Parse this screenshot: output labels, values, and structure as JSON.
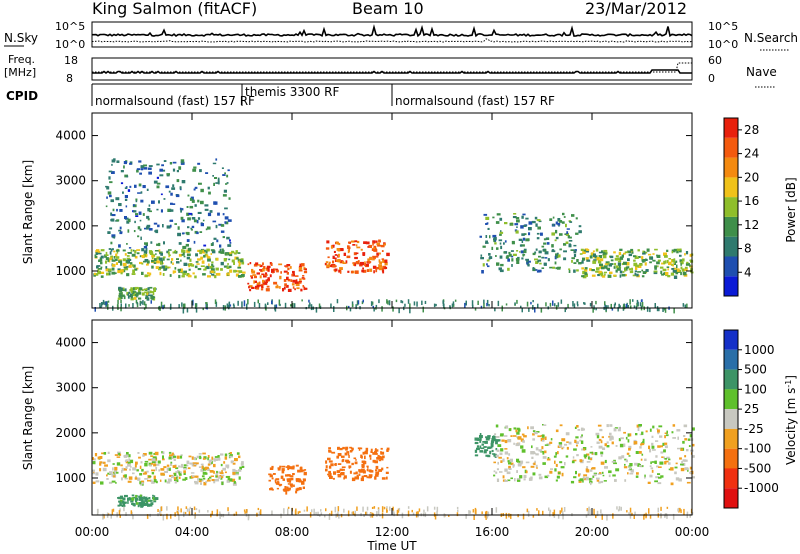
{
  "header": {
    "station": "King Salmon (fitACF)",
    "beam": "Beam 10",
    "date": "23/Mar/2012"
  },
  "top_panels": {
    "nsky_label": "N.Sky",
    "nsky_ticks": [
      "10^5",
      "10^0"
    ],
    "nsearch_label": "N.Search",
    "nsearch_ticks": [
      "10^5",
      "10^0"
    ],
    "freq_label_1": "Freq.",
    "freq_label_2": "[MHz]",
    "freq_ticks": [
      "18",
      "8"
    ],
    "nave_label": "Nave",
    "nave_ticks": [
      "60",
      "0"
    ],
    "cpid_label": "CPID",
    "cpid_segments": [
      {
        "text": "normalsound (fast) 157 RF",
        "start_ut": 0,
        "end_ut": 6.0
      },
      {
        "text": "themis 3300 RF",
        "start_ut": 6.0,
        "end_ut": 12.0
      },
      {
        "text": "normalsound (fast) 157 RF",
        "start_ut": 12.0,
        "end_ut": 24.0
      }
    ]
  },
  "chart_data": [
    {
      "type": "heatmap",
      "title": "",
      "xlabel": "Time UT",
      "ylabel": "Slant Range [km]",
      "xlim": [
        0,
        24
      ],
      "ylim": [
        180,
        4500
      ],
      "x_ticks": [
        "00:00",
        "04:00",
        "08:00",
        "12:00",
        "16:00",
        "20:00",
        "00:00"
      ],
      "y_ticks": [
        1000,
        2000,
        3000,
        4000
      ],
      "colorbar": {
        "label": "Power [dB]",
        "ticks": [
          4,
          8,
          12,
          16,
          20,
          24,
          28
        ],
        "range": [
          0,
          30
        ],
        "colors": [
          "#0b1bd6",
          "#1f4fb0",
          "#2f7a6e",
          "#3f8f4a",
          "#8fbe2b",
          "#f0c21a",
          "#f48a10",
          "#f45a0e",
          "#e8200c"
        ]
      },
      "echo_regions": [
        {
          "name": "E-region band",
          "t_start": 0.0,
          "t_end": 6.0,
          "range_km": [
            900,
            1500
          ],
          "power_db": 14
        },
        {
          "name": "ionospheric scatter",
          "t_start": 0.5,
          "t_end": 5.5,
          "range_km": [
            1500,
            3500
          ],
          "power_db": 8
        },
        {
          "name": "near-range patch",
          "t_start": 1.0,
          "t_end": 2.5,
          "range_km": [
            400,
            650
          ],
          "power_db": 12
        },
        {
          "name": "strong echo",
          "t_start": 6.2,
          "t_end": 8.5,
          "range_km": [
            600,
            1200
          ],
          "power_db": 26
        },
        {
          "name": "strong echo",
          "t_start": 9.3,
          "t_end": 11.8,
          "range_km": [
            1000,
            1700
          ],
          "power_db": 25
        },
        {
          "name": "evening band",
          "t_start": 15.5,
          "t_end": 19.5,
          "range_km": [
            1000,
            2300
          ],
          "power_db": 10
        },
        {
          "name": "night band",
          "t_start": 19.5,
          "t_end": 24.0,
          "range_km": [
            900,
            1500
          ],
          "power_db": 14
        }
      ]
    },
    {
      "type": "heatmap",
      "title": "",
      "xlabel": "Time UT",
      "ylabel": "Slant Range [km]",
      "xlim": [
        0,
        24
      ],
      "ylim": [
        180,
        4500
      ],
      "x_ticks": [
        "00:00",
        "04:00",
        "08:00",
        "12:00",
        "16:00",
        "20:00",
        "00:00"
      ],
      "y_ticks": [
        1000,
        2000,
        3000,
        4000
      ],
      "colorbar": {
        "label": "Velocity [m s^-1]",
        "ticks": [
          1000,
          500,
          100,
          25,
          -25,
          -100,
          -500,
          -1000
        ],
        "colors": [
          "#1530c8",
          "#2a6fa8",
          "#3d9466",
          "#5fc02c",
          "#c8c8c0",
          "#f0a020",
          "#f47010",
          "#f03010",
          "#e01010"
        ]
      },
      "echo_regions": [
        {
          "name": "ground scatter",
          "t_start": 0.0,
          "t_end": 6.0,
          "range_km": [
            900,
            1600
          ],
          "velocity_ms": 0
        },
        {
          "name": "positive velocity patch",
          "t_start": 1.0,
          "t_end": 2.5,
          "range_km": [
            400,
            650
          ],
          "velocity_ms": 150
        },
        {
          "name": "negative velocity echo",
          "t_start": 7.0,
          "t_end": 8.5,
          "range_km": [
            700,
            1300
          ],
          "velocity_ms": -300
        },
        {
          "name": "negative velocity echo",
          "t_start": 9.3,
          "t_end": 11.8,
          "range_km": [
            1000,
            1700
          ],
          "velocity_ms": -300
        },
        {
          "name": "positive velocity patch",
          "t_start": 15.3,
          "t_end": 16.2,
          "range_km": [
            1500,
            2000
          ],
          "velocity_ms": 300
        },
        {
          "name": "ground scatter",
          "t_start": 16.0,
          "t_end": 24.0,
          "range_km": [
            900,
            2200
          ],
          "velocity_ms": 0
        }
      ]
    }
  ]
}
